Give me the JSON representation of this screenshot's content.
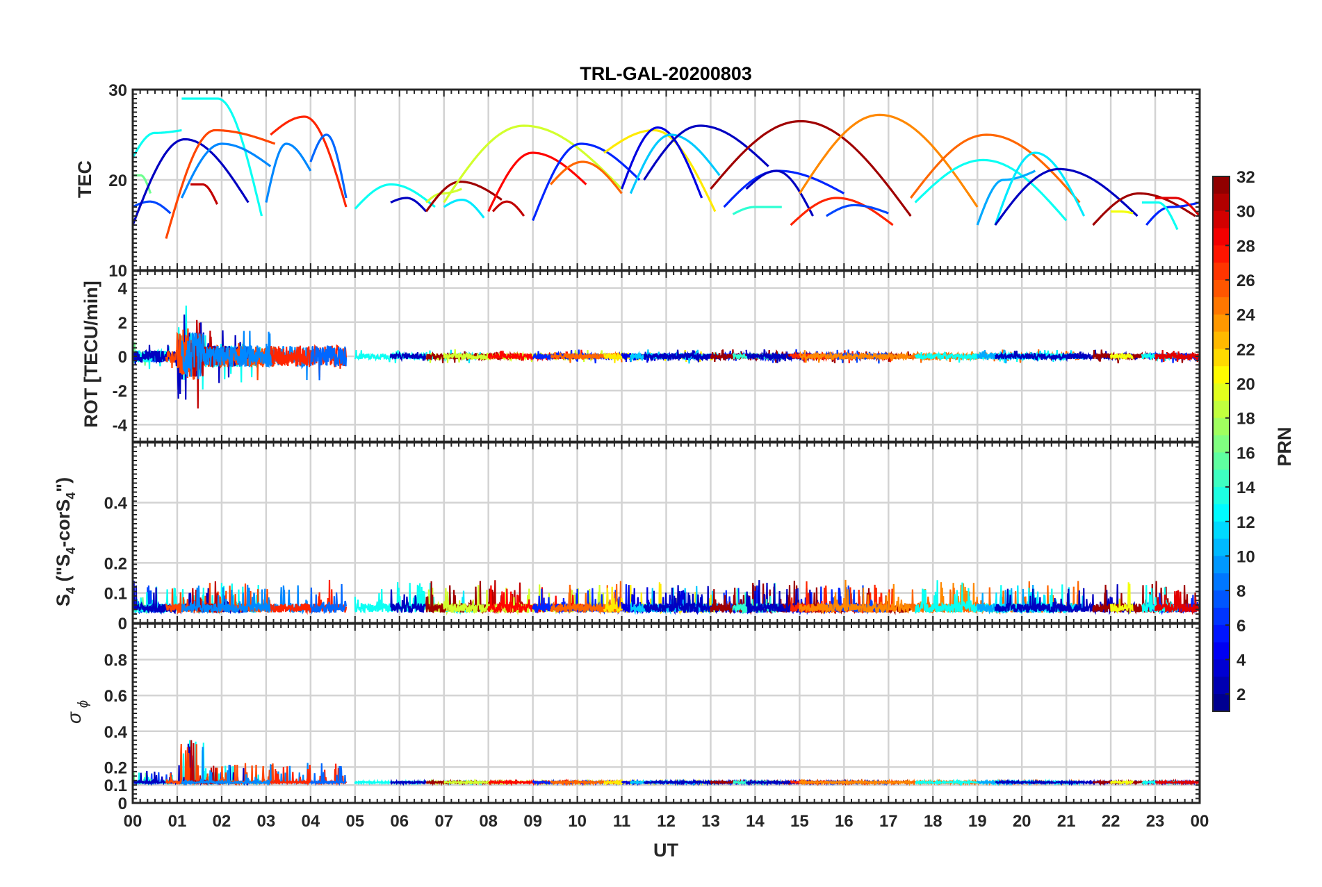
{
  "chart_data": {
    "type": "line",
    "title": "TRL-GAL-20200803",
    "xlabel": "UT",
    "x_range_hours": [
      0,
      24
    ],
    "x_ticks": [
      "00",
      "01",
      "02",
      "03",
      "04",
      "05",
      "06",
      "07",
      "08",
      "09",
      "10",
      "11",
      "12",
      "13",
      "14",
      "15",
      "16",
      "17",
      "18",
      "19",
      "20",
      "21",
      "22",
      "23",
      "00"
    ],
    "colorbar": {
      "label": "PRN",
      "range": [
        1,
        32
      ],
      "ticks": [
        "2",
        "4",
        "6",
        "8",
        "10",
        "12",
        "14",
        "16",
        "18",
        "20",
        "22",
        "24",
        "26",
        "28",
        "30",
        "32"
      ]
    },
    "panels": [
      {
        "id": "tec",
        "ylabel": "TEC",
        "ylim": [
          10,
          30
        ],
        "ytick_values": [
          10,
          20,
          30
        ],
        "ytick_labels": [
          "10",
          "20",
          "30"
        ]
      },
      {
        "id": "rot",
        "ylabel": "ROT [TECU/min]",
        "ylim": [
          -5,
          5
        ],
        "ytick_values": [
          -4,
          -2,
          0,
          2,
          4
        ],
        "ytick_labels": [
          "-4",
          "-2",
          "0",
          "2",
          "4"
        ]
      },
      {
        "id": "s4",
        "ylabel_main": "S",
        "ylabel_sub1": "4",
        "ylabel_mid": " (\"S",
        "ylabel_sub2": "4",
        "ylabel_mid2": "-corS",
        "ylabel_sub3": "4",
        "ylabel_end": "\")",
        "ylim": [
          0,
          0.6
        ],
        "ytick_values": [
          0,
          0.1,
          0.2,
          0.4
        ],
        "ytick_labels": [
          "0",
          "0.1",
          "0.2",
          "0.4"
        ]
      },
      {
        "id": "sigma",
        "ylabel_main": "σ",
        "ylabel_sub": "ϕ",
        "ylim": [
          0,
          1
        ],
        "ytick_values": [
          0,
          0.1,
          0.2,
          0.4,
          0.6,
          0.8
        ],
        "ytick_labels": [
          "0",
          "0.1",
          "0.2",
          "0.4",
          "0.6",
          "0.8"
        ]
      }
    ],
    "tec_arcs": [
      {
        "prn": 7,
        "start": 0.0,
        "end": 0.85,
        "v0": 17.0,
        "peak": 17.6,
        "v1": 16.3
      },
      {
        "prn": 16,
        "start": 0.0,
        "end": 0.4,
        "v0": 20.5,
        "peak": 20.5,
        "v1": 18.5
      },
      {
        "prn": 13,
        "start": 0.0,
        "end": 1.1,
        "v0": 22.5,
        "peak": 25.2,
        "v1": 25.5
      },
      {
        "prn": 13,
        "start": 1.1,
        "end": 2.9,
        "v0": 29.0,
        "peak": 29.0,
        "v1": 16.0
      },
      {
        "prn": 3,
        "start": 0.0,
        "end": 2.6,
        "v0": 15.0,
        "peak": 24.5,
        "v1": 17.5
      },
      {
        "prn": 26,
        "start": 0.75,
        "end": 3.2,
        "v0": 13.5,
        "peak": 25.5,
        "v1": 24.0
      },
      {
        "prn": 30,
        "start": 1.3,
        "end": 1.9,
        "v0": 19.5,
        "peak": 19.5,
        "v1": 17.3
      },
      {
        "prn": 9,
        "start": 1.1,
        "end": 3.1,
        "v0": 18.0,
        "peak": 24.0,
        "v1": 21.5
      },
      {
        "prn": 9,
        "start": 3.0,
        "end": 4.0,
        "v0": 17.5,
        "peak": 24.0,
        "v1": 21.0
      },
      {
        "prn": 27,
        "start": 3.1,
        "end": 4.8,
        "v0": 25.0,
        "peak": 27.0,
        "v1": 17.0
      },
      {
        "prn": 8,
        "start": 4.0,
        "end": 4.8,
        "v0": 22.0,
        "peak": 25.0,
        "v1": 18.0
      },
      {
        "prn": 13,
        "start": 5.0,
        "end": 6.8,
        "v0": 16.8,
        "peak": 19.5,
        "v1": 17.0
      },
      {
        "prn": 3,
        "start": 5.8,
        "end": 6.6,
        "v0": 17.5,
        "peak": 18.0,
        "v1": 16.5
      },
      {
        "prn": 19,
        "start": 6.6,
        "end": 7.4,
        "v0": 17.5,
        "peak": 18.5,
        "v1": 19.0
      },
      {
        "prn": 12,
        "start": 7.0,
        "end": 7.9,
        "v0": 17.0,
        "peak": 17.8,
        "v1": 15.8
      },
      {
        "prn": 31,
        "start": 6.6,
        "end": 8.3,
        "v0": 16.5,
        "peak": 19.8,
        "v1": 17.8
      },
      {
        "prn": 30,
        "start": 8.1,
        "end": 8.8,
        "v0": 16.5,
        "peak": 17.6,
        "v1": 16.0
      },
      {
        "prn": 19,
        "start": 7.0,
        "end": 11.0,
        "v0": 17.5,
        "peak": 26.0,
        "v1": 19.0
      },
      {
        "prn": 28,
        "start": 8.0,
        "end": 10.2,
        "v0": 16.5,
        "peak": 23.0,
        "v1": 19.5
      },
      {
        "prn": 6,
        "start": 9.0,
        "end": 11.4,
        "v0": 15.5,
        "peak": 24.0,
        "v1": 20.0
      },
      {
        "prn": 25,
        "start": 9.4,
        "end": 11.0,
        "v0": 19.5,
        "peak": 22.0,
        "v1": 18.5
      },
      {
        "prn": 21,
        "start": 10.6,
        "end": 13.1,
        "v0": 23.0,
        "peak": 25.5,
        "v1": 16.5
      },
      {
        "prn": 4,
        "start": 11.0,
        "end": 12.8,
        "v0": 19.0,
        "peak": 25.8,
        "v1": 18.0
      },
      {
        "prn": 11,
        "start": 11.2,
        "end": 13.2,
        "v0": 18.5,
        "peak": 25.0,
        "v1": 20.5
      },
      {
        "prn": 3,
        "start": 11.5,
        "end": 14.3,
        "v0": 20.0,
        "peak": 26.0,
        "v1": 21.5
      },
      {
        "prn": 6,
        "start": 13.3,
        "end": 16.0,
        "v0": 17.0,
        "peak": 21.0,
        "v1": 18.5
      },
      {
        "prn": 31,
        "start": 13.0,
        "end": 17.5,
        "v0": 19.0,
        "peak": 26.5,
        "v1": 16.0
      },
      {
        "prn": 14,
        "start": 13.5,
        "end": 14.6,
        "v0": 16.2,
        "peak": 17.0,
        "v1": 17.0
      },
      {
        "prn": 3,
        "start": 13.8,
        "end": 15.3,
        "v0": 19.0,
        "peak": 21.0,
        "v1": 16.0
      },
      {
        "prn": 27,
        "start": 14.8,
        "end": 17.1,
        "v0": 15.0,
        "peak": 18.0,
        "v1": 15.0
      },
      {
        "prn": 7,
        "start": 15.6,
        "end": 17.0,
        "v0": 16.0,
        "peak": 17.2,
        "v1": 16.3
      },
      {
        "prn": 24,
        "start": 15.0,
        "end": 19.0,
        "v0": 18.5,
        "peak": 27.2,
        "v1": 17.0
      },
      {
        "prn": 25,
        "start": 17.5,
        "end": 21.3,
        "v0": 18.0,
        "peak": 25.0,
        "v1": 17.5
      },
      {
        "prn": 13,
        "start": 17.6,
        "end": 21.0,
        "v0": 17.5,
        "peak": 22.2,
        "v1": 15.5
      },
      {
        "prn": 10,
        "start": 19.0,
        "end": 20.3,
        "v0": 15.0,
        "peak": 20.0,
        "v1": 21.0
      },
      {
        "prn": 12,
        "start": 19.4,
        "end": 21.4,
        "v0": 15.0,
        "peak": 23.0,
        "v1": 16.0
      },
      {
        "prn": 3,
        "start": 19.4,
        "end": 22.6,
        "v0": 15.0,
        "peak": 21.2,
        "v1": 16.0
      },
      {
        "prn": 31,
        "start": 21.6,
        "end": 23.9,
        "v0": 15.0,
        "peak": 18.5,
        "v1": 16.0
      },
      {
        "prn": 20,
        "start": 22.0,
        "end": 22.5,
        "v0": 16.5,
        "peak": 16.5,
        "v1": 16.3
      },
      {
        "prn": 6,
        "start": 22.8,
        "end": 24.0,
        "v0": 15.0,
        "peak": 17.0,
        "v1": 17.5
      },
      {
        "prn": 13,
        "start": 22.7,
        "end": 23.5,
        "v0": 17.5,
        "peak": 17.5,
        "v1": 14.5
      },
      {
        "prn": 29,
        "start": 23.0,
        "end": 24.0,
        "v0": 18.0,
        "peak": 18.0,
        "v1": 16.0
      }
    ]
  }
}
